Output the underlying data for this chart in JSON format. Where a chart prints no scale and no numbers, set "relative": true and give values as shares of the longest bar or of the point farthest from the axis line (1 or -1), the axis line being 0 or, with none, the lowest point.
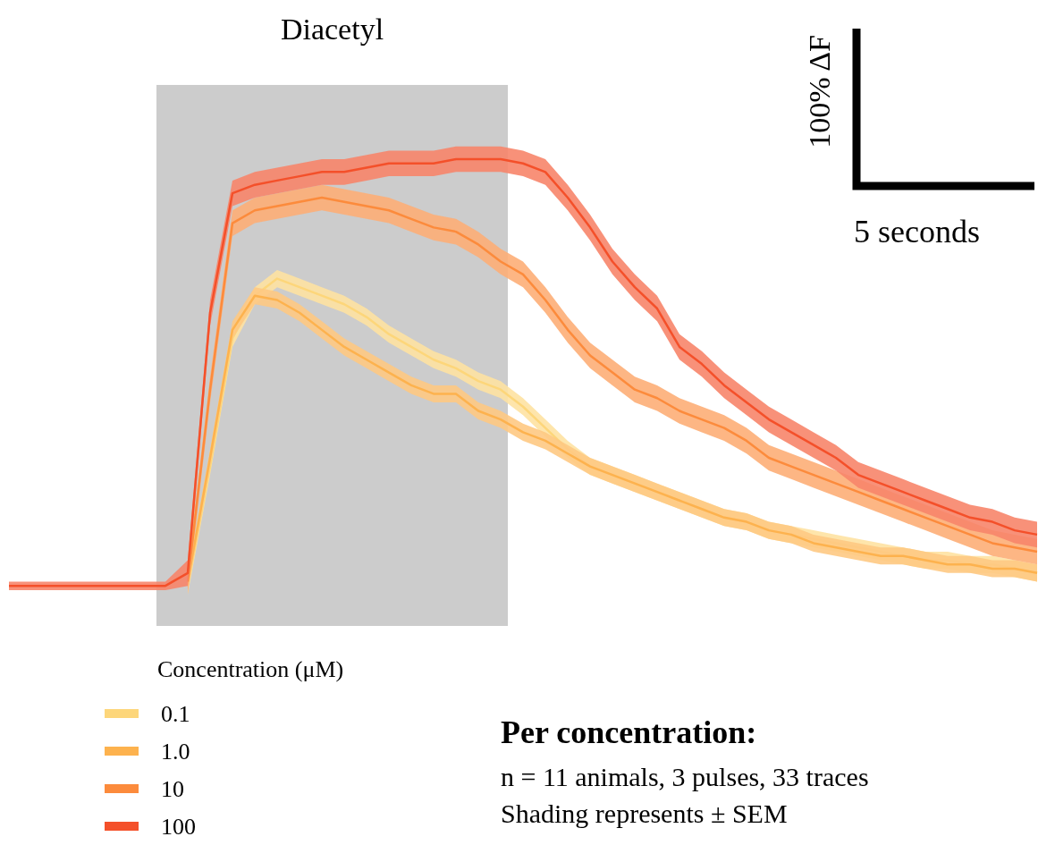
{
  "chart_data": {
    "type": "line",
    "relative": true,
    "legend": "bottom left",
    "legend_title": "Concentration (μM)",
    "categories": [
      null,
      null,
      null,
      null,
      null,
      null,
      null,
      null,
      null,
      null,
      null,
      null,
      null,
      null,
      null,
      null,
      null,
      null,
      null,
      null,
      null,
      null,
      null,
      null,
      null,
      null,
      null,
      null,
      null,
      null,
      null,
      null,
      null,
      null,
      null,
      null,
      null,
      null,
      null,
      null,
      null,
      null,
      null,
      null,
      null,
      null,
      null
    ],
    "series": [
      {
        "name": "0.1",
        "color": "#fdd67a",
        "values": [
          null,
          null,
          null,
          null,
          null,
          null,
          null,
          null,
          0,
          0.28,
          0.58,
          0.68,
          0.72,
          0.7,
          0.68,
          0.66,
          0.63,
          0.59,
          0.56,
          0.53,
          0.51,
          0.48,
          0.46,
          0.42,
          0.37,
          0.32,
          0.28,
          0.26,
          0.24,
          0.22,
          0.2,
          0.18,
          0.16,
          0.15,
          0.13,
          0.12,
          0.11,
          0.1,
          0.09,
          0.08,
          0.07,
          0.06,
          0.06,
          0.05,
          0.05,
          0.04,
          0.03
        ],
        "lower": [
          null,
          null,
          null,
          null,
          null,
          null,
          null,
          null,
          -0.02,
          0.26,
          0.56,
          0.66,
          0.7,
          0.68,
          0.66,
          0.64,
          0.61,
          0.57,
          0.54,
          0.51,
          0.49,
          0.46,
          0.44,
          0.4,
          0.35,
          0.3,
          0.26,
          0.24,
          0.22,
          0.2,
          0.18,
          0.16,
          0.14,
          0.13,
          0.11,
          0.1,
          0.09,
          0.08,
          0.07,
          0.06,
          0.05,
          0.04,
          0.04,
          0.03,
          0.03,
          0.02,
          0.01
        ],
        "upper": [
          null,
          null,
          null,
          null,
          null,
          null,
          null,
          null,
          0.02,
          0.3,
          0.6,
          0.7,
          0.74,
          0.72,
          0.7,
          0.68,
          0.65,
          0.61,
          0.58,
          0.55,
          0.53,
          0.5,
          0.48,
          0.44,
          0.39,
          0.34,
          0.3,
          0.28,
          0.26,
          0.24,
          0.22,
          0.2,
          0.18,
          0.17,
          0.15,
          0.14,
          0.13,
          0.12,
          0.11,
          0.1,
          0.09,
          0.08,
          0.08,
          0.07,
          0.07,
          0.06,
          0.05
        ]
      },
      {
        "name": "1.0",
        "color": "#fdb24e",
        "values": [
          null,
          null,
          null,
          null,
          null,
          null,
          null,
          null,
          0.01,
          0.3,
          0.6,
          0.68,
          0.67,
          0.64,
          0.6,
          0.56,
          0.53,
          0.5,
          0.47,
          0.45,
          0.45,
          0.41,
          0.39,
          0.36,
          0.34,
          0.31,
          0.28,
          0.26,
          0.24,
          0.22,
          0.2,
          0.18,
          0.16,
          0.15,
          0.13,
          0.12,
          0.1,
          0.09,
          0.08,
          0.07,
          0.07,
          0.06,
          0.05,
          0.05,
          0.04,
          0.04,
          0.03
        ],
        "lower": [
          null,
          null,
          null,
          null,
          null,
          null,
          null,
          null,
          -0.01,
          0.28,
          0.58,
          0.66,
          0.65,
          0.62,
          0.58,
          0.54,
          0.51,
          0.48,
          0.45,
          0.43,
          0.43,
          0.39,
          0.37,
          0.34,
          0.32,
          0.29,
          0.26,
          0.24,
          0.22,
          0.2,
          0.18,
          0.16,
          0.14,
          0.13,
          0.11,
          0.1,
          0.08,
          0.07,
          0.06,
          0.05,
          0.05,
          0.04,
          0.03,
          0.03,
          0.02,
          0.02,
          0.01
        ],
        "upper": [
          null,
          null,
          null,
          null,
          null,
          null,
          null,
          null,
          0.03,
          0.32,
          0.62,
          0.7,
          0.69,
          0.66,
          0.62,
          0.58,
          0.55,
          0.52,
          0.49,
          0.47,
          0.47,
          0.43,
          0.41,
          0.38,
          0.36,
          0.33,
          0.3,
          0.28,
          0.26,
          0.24,
          0.22,
          0.2,
          0.18,
          0.17,
          0.15,
          0.14,
          0.12,
          0.11,
          0.1,
          0.09,
          0.09,
          0.08,
          0.07,
          0.07,
          0.06,
          0.06,
          0.05
        ]
      },
      {
        "name": "10",
        "color": "#fc8b3c",
        "values": [
          null,
          null,
          null,
          null,
          null,
          null,
          null,
          null,
          0.01,
          0.46,
          0.85,
          0.88,
          0.89,
          0.9,
          0.91,
          0.9,
          0.89,
          0.88,
          0.86,
          0.84,
          0.83,
          0.8,
          0.76,
          0.73,
          0.67,
          0.6,
          0.54,
          0.5,
          0.46,
          0.44,
          0.41,
          0.39,
          0.37,
          0.34,
          0.3,
          0.28,
          0.26,
          0.24,
          0.22,
          0.2,
          0.18,
          0.16,
          0.14,
          0.12,
          0.1,
          0.09,
          0.08
        ],
        "lower": [
          null,
          null,
          null,
          null,
          null,
          null,
          null,
          null,
          -0.02,
          0.43,
          0.82,
          0.85,
          0.86,
          0.87,
          0.88,
          0.87,
          0.86,
          0.85,
          0.83,
          0.81,
          0.8,
          0.77,
          0.73,
          0.7,
          0.64,
          0.57,
          0.51,
          0.47,
          0.43,
          0.41,
          0.38,
          0.36,
          0.34,
          0.31,
          0.27,
          0.25,
          0.23,
          0.21,
          0.19,
          0.17,
          0.15,
          0.13,
          0.11,
          0.09,
          0.07,
          0.06,
          0.05
        ],
        "upper": [
          null,
          null,
          null,
          null,
          null,
          null,
          null,
          null,
          0.04,
          0.49,
          0.88,
          0.91,
          0.92,
          0.93,
          0.94,
          0.93,
          0.92,
          0.91,
          0.89,
          0.87,
          0.86,
          0.83,
          0.79,
          0.76,
          0.7,
          0.63,
          0.57,
          0.53,
          0.49,
          0.47,
          0.44,
          0.42,
          0.4,
          0.37,
          0.33,
          0.31,
          0.29,
          0.27,
          0.25,
          0.23,
          0.21,
          0.19,
          0.17,
          0.15,
          0.13,
          0.12,
          0.11
        ]
      },
      {
        "name": "100",
        "color": "#f4502a",
        "values": [
          0,
          0,
          0,
          0,
          0,
          0,
          0,
          0,
          0.03,
          0.64,
          0.92,
          0.94,
          0.95,
          0.96,
          0.97,
          0.97,
          0.98,
          0.99,
          0.99,
          0.99,
          1.0,
          1.0,
          1.0,
          0.99,
          0.97,
          0.91,
          0.84,
          0.76,
          0.7,
          0.65,
          0.56,
          0.52,
          0.47,
          0.43,
          0.39,
          0.36,
          0.33,
          0.3,
          0.26,
          0.24,
          0.22,
          0.2,
          0.18,
          0.16,
          0.15,
          0.13,
          0.12
        ],
        "lower": [
          -0.01,
          -0.01,
          -0.01,
          -0.01,
          -0.01,
          -0.01,
          -0.01,
          -0.01,
          0,
          0.61,
          0.89,
          0.91,
          0.92,
          0.93,
          0.94,
          0.94,
          0.95,
          0.96,
          0.96,
          0.96,
          0.97,
          0.97,
          0.97,
          0.96,
          0.94,
          0.88,
          0.81,
          0.73,
          0.67,
          0.62,
          0.53,
          0.49,
          0.44,
          0.4,
          0.36,
          0.33,
          0.3,
          0.27,
          0.23,
          0.21,
          0.19,
          0.17,
          0.15,
          0.13,
          0.12,
          0.1,
          0.09
        ],
        "upper": [
          0.01,
          0.01,
          0.01,
          0.01,
          0.01,
          0.01,
          0.01,
          0.01,
          0.06,
          0.67,
          0.95,
          0.97,
          0.98,
          0.99,
          1.0,
          1.0,
          1.01,
          1.02,
          1.02,
          1.02,
          1.03,
          1.03,
          1.03,
          1.02,
          1.0,
          0.94,
          0.87,
          0.79,
          0.73,
          0.68,
          0.59,
          0.55,
          0.5,
          0.46,
          0.42,
          0.39,
          0.36,
          0.33,
          0.29,
          0.27,
          0.25,
          0.23,
          0.21,
          0.19,
          0.18,
          0.16,
          0.15
        ]
      }
    ],
    "annotations": [
      "Diacetyl",
      "100% ΔF",
      "5 seconds",
      "Per concentration:",
      "n = 11 animals, 3 pulses, 33 traces",
      "Shading represents ± SEM"
    ]
  }
}
